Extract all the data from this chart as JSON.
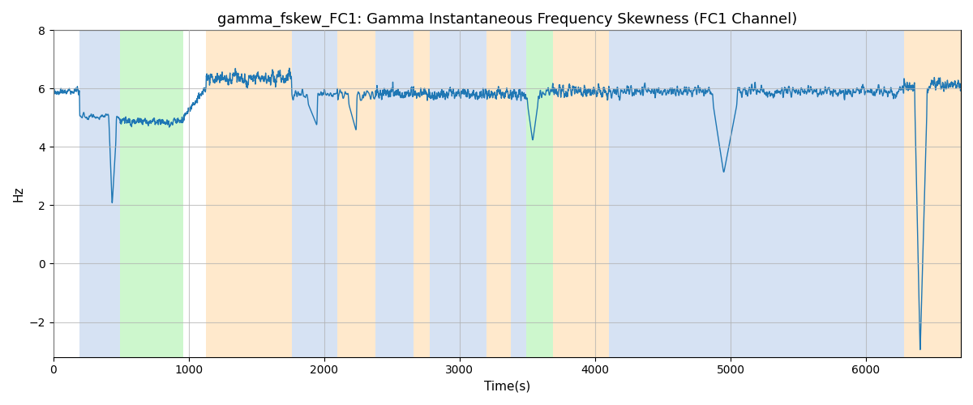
{
  "title": "gamma_fskew_FC1: Gamma Instantaneous Frequency Skewness (FC1 Channel)",
  "xlabel": "Time(s)",
  "ylabel": "Hz",
  "line_color": "#1f77b4",
  "line_width": 1.0,
  "ylim": [
    -3.2,
    8.0
  ],
  "xlim": [
    0,
    6700
  ],
  "figsize": [
    12,
    5
  ],
  "dpi": 100,
  "bands": [
    {
      "start": 195,
      "end": 490,
      "color": "#aec6e8",
      "alpha": 0.5
    },
    {
      "start": 490,
      "end": 960,
      "color": "#90ee90",
      "alpha": 0.45
    },
    {
      "start": 1130,
      "end": 1760,
      "color": "#ffd59b",
      "alpha": 0.5
    },
    {
      "start": 1760,
      "end": 2100,
      "color": "#aec6e8",
      "alpha": 0.5
    },
    {
      "start": 2100,
      "end": 2380,
      "color": "#ffd59b",
      "alpha": 0.5
    },
    {
      "start": 2380,
      "end": 2660,
      "color": "#aec6e8",
      "alpha": 0.5
    },
    {
      "start": 2660,
      "end": 2780,
      "color": "#ffd59b",
      "alpha": 0.5
    },
    {
      "start": 2780,
      "end": 3200,
      "color": "#aec6e8",
      "alpha": 0.5
    },
    {
      "start": 3200,
      "end": 3380,
      "color": "#ffd59b",
      "alpha": 0.5
    },
    {
      "start": 3380,
      "end": 3490,
      "color": "#aec6e8",
      "alpha": 0.5
    },
    {
      "start": 3490,
      "end": 3690,
      "color": "#90ee90",
      "alpha": 0.45
    },
    {
      "start": 3690,
      "end": 4100,
      "color": "#ffd59b",
      "alpha": 0.5
    },
    {
      "start": 4100,
      "end": 4680,
      "color": "#aec6e8",
      "alpha": 0.5
    },
    {
      "start": 4680,
      "end": 6280,
      "color": "#aec6e8",
      "alpha": 0.5
    },
    {
      "start": 6280,
      "end": 6700,
      "color": "#ffd59b",
      "alpha": 0.5
    }
  ],
  "grid_color": "#b0b0b0",
  "grid_alpha": 0.7,
  "grid_linewidth": 0.8,
  "title_fontsize": 13,
  "axis_label_fontsize": 11,
  "tick_fontsize": 10,
  "seed": 42
}
